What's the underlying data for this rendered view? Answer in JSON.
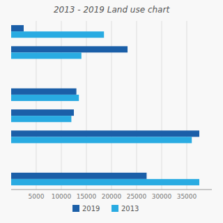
{
  "chart_data": {
    "type": "bar",
    "orientation": "horizontal",
    "title": "2013 - 2019 Land use chart",
    "categories": [
      null,
      null,
      null,
      null,
      null,
      null,
      null,
      null
    ],
    "series": [
      {
        "name": "2019",
        "color": "#1b5fa8",
        "values": [
          2500,
          23200,
          0,
          13000,
          12500,
          37500,
          0,
          27000
        ]
      },
      {
        "name": "2013",
        "color": "#29abe2",
        "values": [
          18500,
          14000,
          0,
          13500,
          12000,
          36000,
          0,
          37500
        ]
      }
    ],
    "xlim": [
      0,
      40000
    ],
    "xticks": [
      5000,
      10000,
      15000,
      20000,
      25000,
      30000,
      35000
    ],
    "grid": true,
    "legend": "bottom",
    "tick_labels": "x"
  }
}
